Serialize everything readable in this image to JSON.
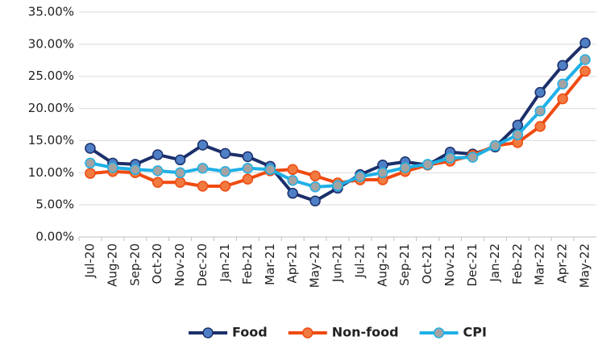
{
  "chart_data": {
    "type": "line",
    "categories": [
      "Jul-20",
      "Aug-20",
      "Sep-20",
      "Oct-20",
      "Nov-20",
      "Dec-20",
      "Jan-21",
      "Feb-21",
      "Mar-21",
      "Apr-21",
      "May-21",
      "Jun-21",
      "Jul-21",
      "Aug-21",
      "Sep-21",
      "Oct-21",
      "Nov-21",
      "Dec-21",
      "Jan-22",
      "Feb-22",
      "Mar-22",
      "Apr-22",
      "May-22"
    ],
    "series": [
      {
        "name": "Food",
        "color": "#1b2f6a",
        "marker_fill": "#4f7fc4",
        "values": [
          13.8,
          11.5,
          11.3,
          12.8,
          12.0,
          14.3,
          13.0,
          12.5,
          11.0,
          6.8,
          5.6,
          7.6,
          9.7,
          11.2,
          11.7,
          11.2,
          13.2,
          12.9,
          14.0,
          17.4,
          22.5,
          26.7,
          30.2
        ]
      },
      {
        "name": "Non-food",
        "color": "#f04a10",
        "marker_fill": "#f07a40",
        "values": [
          9.9,
          10.2,
          10.0,
          8.5,
          8.5,
          7.9,
          7.9,
          9.0,
          10.3,
          10.5,
          9.5,
          8.4,
          8.9,
          8.9,
          10.2,
          11.2,
          11.8,
          12.7,
          14.2,
          14.7,
          17.2,
          21.5,
          25.8
        ]
      },
      {
        "name": "CPI",
        "color": "#1fb0e6",
        "marker_fill": "#a3a3a3",
        "values": [
          11.5,
          10.8,
          10.5,
          10.3,
          10.0,
          10.7,
          10.2,
          10.7,
          10.5,
          8.8,
          7.8,
          8.0,
          9.4,
          10.0,
          10.8,
          11.3,
          12.3,
          12.4,
          14.2,
          15.9,
          19.6,
          23.8,
          27.6
        ]
      }
    ],
    "ylim": [
      0,
      35
    ],
    "yticks": [
      {
        "value": 0,
        "label": "0.00%"
      },
      {
        "value": 5,
        "label": "5.00%"
      },
      {
        "value": 10,
        "label": "10.00%"
      },
      {
        "value": 15,
        "label": "15.00%"
      },
      {
        "value": 20,
        "label": "20.00%"
      },
      {
        "value": 25,
        "label": "25.00%"
      },
      {
        "value": 30,
        "label": "30.00%"
      },
      {
        "value": 35,
        "label": "35.00%"
      }
    ],
    "grid": true,
    "legend": "bottom"
  }
}
